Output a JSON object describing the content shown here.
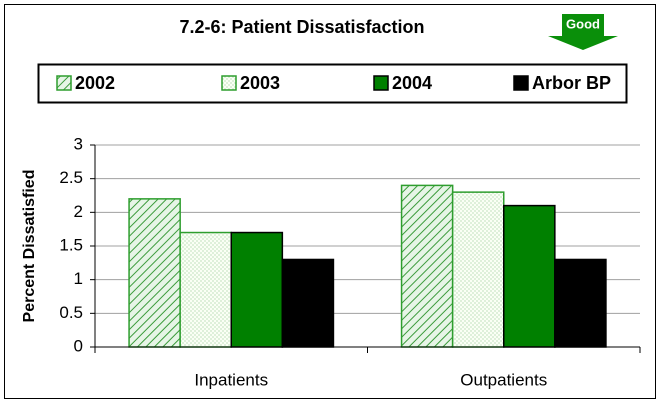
{
  "chart_data": {
    "type": "bar",
    "title": "7.2-6: Patient Dissatisfaction",
    "annotation": "Good",
    "ylabel": "Percent Dissatisfied",
    "categories": [
      "Inpatients",
      "Outpatients"
    ],
    "series": [
      {
        "name": "2002",
        "color": "#2e9e2e",
        "values": [
          2.2,
          2.4
        ]
      },
      {
        "name": "2003",
        "color": "#2e9e2e",
        "values": [
          1.7,
          2.3
        ]
      },
      {
        "name": "2004",
        "color": "#008000",
        "values": [
          1.7,
          2.1
        ]
      },
      {
        "name": "Arbor BP",
        "color": "#000000",
        "values": [
          1.3,
          1.3
        ]
      }
    ],
    "ylim": [
      0,
      3
    ],
    "yticks": [
      0,
      0.5,
      1,
      1.5,
      2,
      2.5,
      3
    ],
    "grid": true
  }
}
